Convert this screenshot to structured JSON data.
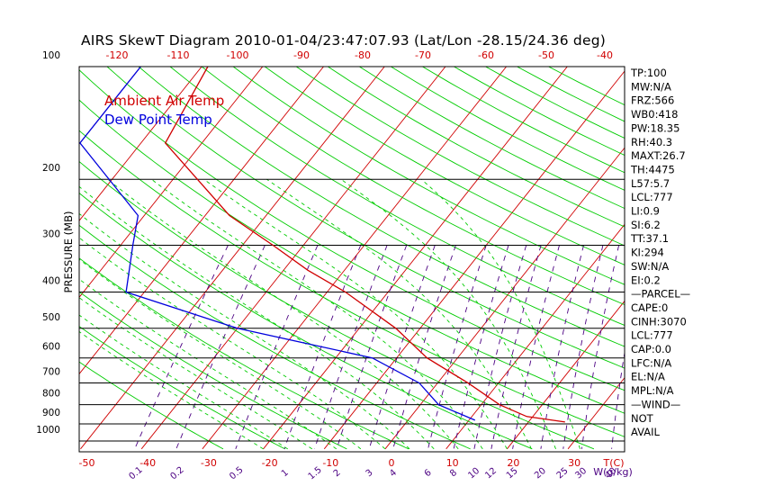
{
  "title": "AIRS SkewT Diagram 2010-01-04/23:47:07.93 (Lat/Lon -28.15/24.36 deg)",
  "chart_data": {
    "type": "line",
    "title": "AIRS SkewT Diagram 2010-01-04/23:47:07.93 (Lat/Lon -28.15/24.36 deg)",
    "ylabel": "PRESSURE (MB)",
    "xlabel_temp": "T(C)",
    "xlabel_mixing": "W(g/kg)",
    "ylim": [
      100,
      1050
    ],
    "y_scale": "log-reversed",
    "pressure_ticks": [
      100,
      200,
      300,
      400,
      500,
      600,
      700,
      800,
      900,
      1000
    ],
    "temp_ticks_bottom": [
      -50,
      -40,
      -30,
      -20,
      -10,
      0,
      10,
      20,
      30
    ],
    "temp_ticks_top": [
      -120,
      -110,
      -100,
      -90,
      -80,
      -70,
      -60,
      -50,
      -40
    ],
    "mixing_ratio_ticks": [
      "0.1",
      "0.2",
      "0.5",
      "1",
      "1.5",
      "2",
      "3",
      "4",
      "6",
      "8",
      "10",
      "12",
      "15",
      "20",
      "25",
      "30",
      "40"
    ],
    "mixing_ratio_values": [
      0.1,
      0.2,
      0.5,
      1,
      1.5,
      2,
      3,
      4,
      6,
      8,
      10,
      12,
      15,
      20,
      25,
      30,
      40
    ],
    "series": [
      {
        "name": "Ambient Air Temp",
        "color": "#d00000",
        "points": [
          {
            "p": 100,
            "t": -79
          },
          {
            "p": 160,
            "t": -76
          },
          {
            "p": 200,
            "t": -66
          },
          {
            "p": 250,
            "t": -56
          },
          {
            "p": 300,
            "t": -45
          },
          {
            "p": 350,
            "t": -36
          },
          {
            "p": 400,
            "t": -27
          },
          {
            "p": 500,
            "t": -14
          },
          {
            "p": 600,
            "t": -5
          },
          {
            "p": 700,
            "t": 5
          },
          {
            "p": 800,
            "t": 13
          },
          {
            "p": 860,
            "t": 19
          },
          {
            "p": 890,
            "t": 26
          }
        ]
      },
      {
        "name": "Dew Point Temp",
        "color": "#0000dd",
        "points": [
          {
            "p": 100,
            "t": -90
          },
          {
            "p": 160,
            "t": -90
          },
          {
            "p": 250,
            "t": -71
          },
          {
            "p": 300,
            "t": -68
          },
          {
            "p": 400,
            "t": -63
          },
          {
            "p": 500,
            "t": -40
          },
          {
            "p": 600,
            "t": -14
          },
          {
            "p": 700,
            "t": -3
          },
          {
            "p": 800,
            "t": 3
          },
          {
            "p": 880,
            "t": 11
          }
        ]
      }
    ],
    "indices": [
      "TP:100",
      "MW:N/A",
      "FRZ:566",
      "WB0:418",
      "PW:18.35",
      "RH:40.3",
      "MAXT:26.7",
      "TH:4475",
      "L57:5.7",
      "LCL:777",
      "LI:0.9",
      "SI:6.2",
      "TT:37.1",
      "KI:294",
      "SW:N/A",
      "EI:0.2",
      "—PARCEL—",
      "CAPE:0",
      "CINH:3070",
      "LCL:777",
      "CAP:0.0",
      "LFC:N/A",
      "EL:N/A",
      "MPL:N/A",
      "—WIND—",
      "NOT",
      "AVAIL"
    ],
    "colors": {
      "isotherm": "#d00000",
      "dry_adiabat": "#00cc00",
      "moist_adiabat": "#00cc00",
      "mixing_ratio": "#4b0082",
      "isobar": "#000000",
      "ambient": "#d00000",
      "dewpoint": "#0000dd"
    }
  }
}
